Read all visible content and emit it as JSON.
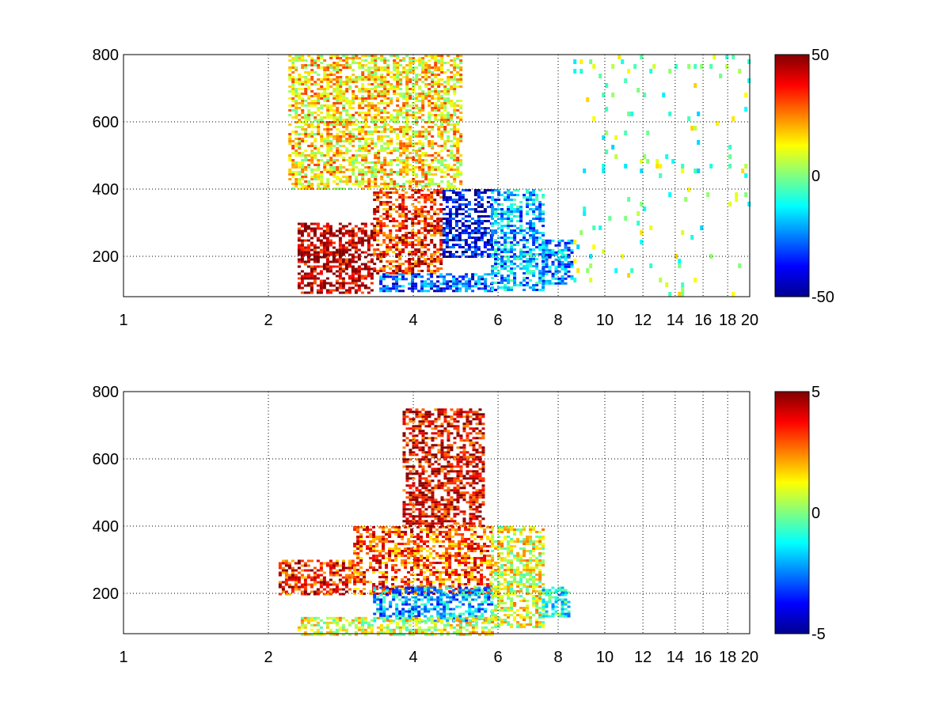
{
  "chart_data": [
    {
      "type": "heatmap",
      "title": "",
      "xlabel": "",
      "ylabel": "",
      "x_scale": "log",
      "xlim": [
        1,
        20
      ],
      "ylim": [
        80,
        800
      ],
      "x_ticks": [
        1,
        2,
        4,
        6,
        8,
        10,
        12,
        14,
        16,
        18,
        20
      ],
      "y_ticks": [
        200,
        400,
        600,
        800
      ],
      "grid": true,
      "colormap": "jet",
      "clim": [
        -50,
        50
      ],
      "colorbar_ticks": [
        50,
        0,
        -50
      ],
      "regions": [
        {
          "x": [
            2.3,
            3.3
          ],
          "y": [
            90,
            300
          ],
          "value": 45
        },
        {
          "x": [
            3.3,
            4.6
          ],
          "y": [
            150,
            400
          ],
          "value": 35
        },
        {
          "x": [
            4.6,
            5.8
          ],
          "y": [
            200,
            400
          ],
          "value": -40
        },
        {
          "x": [
            3.4,
            5.8
          ],
          "y": [
            100,
            150
          ],
          "value": -30
        },
        {
          "x": [
            2.2,
            5.0
          ],
          "y": [
            400,
            800
          ],
          "value": 15
        },
        {
          "x": [
            5.8,
            7.4
          ],
          "y": [
            100,
            400
          ],
          "value": -20
        },
        {
          "x": [
            7.4,
            8.6
          ],
          "y": [
            120,
            250
          ],
          "value": -25
        },
        {
          "x": [
            8.6,
            20.0
          ],
          "y": [
            80,
            800
          ],
          "value": 0
        }
      ]
    },
    {
      "type": "heatmap",
      "title": "",
      "xlabel": "",
      "ylabel": "",
      "x_scale": "log",
      "xlim": [
        1,
        20
      ],
      "ylim": [
        80,
        800
      ],
      "x_ticks": [
        1,
        2,
        4,
        6,
        8,
        10,
        12,
        14,
        16,
        18,
        20
      ],
      "y_ticks": [
        200,
        400,
        600,
        800
      ],
      "grid": true,
      "colormap": "jet",
      "clim": [
        -5,
        5
      ],
      "colorbar_ticks": [
        5,
        0,
        -5
      ],
      "regions": [
        {
          "x": [
            2.1,
            3.0
          ],
          "y": [
            200,
            300
          ],
          "value": 3.5
        },
        {
          "x": [
            3.0,
            5.8
          ],
          "y": [
            200,
            400
          ],
          "value": 3
        },
        {
          "x": [
            3.3,
            5.8
          ],
          "y": [
            120,
            220
          ],
          "value": -2
        },
        {
          "x": [
            2.3,
            5.8
          ],
          "y": [
            80,
            130
          ],
          "value": 1
        },
        {
          "x": [
            3.8,
            5.6
          ],
          "y": [
            400,
            750
          ],
          "value": 4
        },
        {
          "x": [
            5.8,
            7.4
          ],
          "y": [
            100,
            400
          ],
          "value": 1
        },
        {
          "x": [
            7.4,
            8.4
          ],
          "y": [
            130,
            220
          ],
          "value": -1
        }
      ]
    }
  ]
}
